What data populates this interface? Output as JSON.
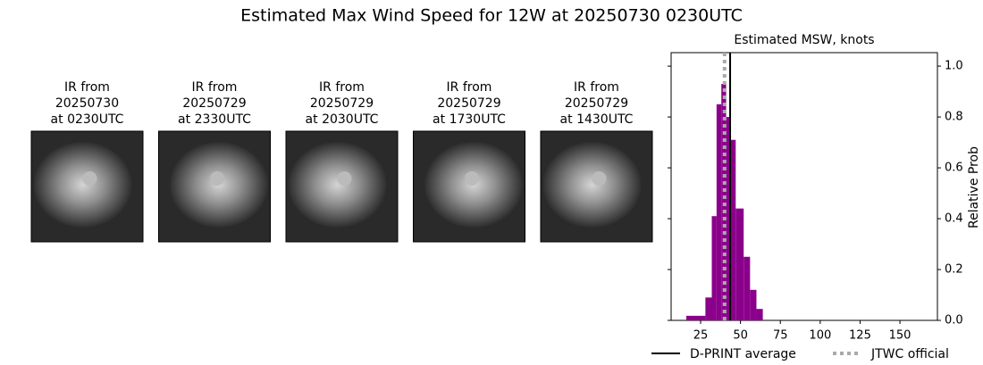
{
  "chart_data": {
    "type": "histogram",
    "title": "Estimated Max Wind Speed for 12W at 20250730 0230UTC",
    "panels": [
      {
        "label": [
          "IR from",
          "20250730",
          "at 0230UTC"
        ]
      },
      {
        "label": [
          "IR from",
          "20250729",
          "at 2330UTC"
        ]
      },
      {
        "label": [
          "IR from",
          "20250729",
          "at 2030UTC"
        ]
      },
      {
        "label": [
          "IR from",
          "20250729",
          "at 1730UTC"
        ]
      },
      {
        "label": [
          "IR from",
          "20250729",
          "at 1430UTC"
        ]
      }
    ],
    "histogram_title": "Estimated MSW, knots",
    "y2label": "Relative Prob",
    "bins": [
      16,
      28,
      32,
      35,
      38,
      41,
      44,
      47,
      52,
      56,
      60,
      64
    ],
    "counts": [
      0.018,
      0.09,
      0.41,
      0.85,
      0.93,
      0.8,
      0.71,
      0.44,
      0.25,
      0.12,
      0.045
    ],
    "color": "#8b008b",
    "xlim": [
      6.5,
      173.5
    ],
    "xticks": [
      25,
      50,
      75,
      100,
      125,
      150
    ],
    "ylim": [
      0,
      1.053
    ],
    "yticks": [
      {
        "value": 0,
        "label": "0.0"
      },
      0.2,
      0.4,
      0.6,
      0.8,
      {
        "value": 1,
        "label": "1.0"
      }
    ],
    "reference_lines": [
      {
        "name": "D-PRINT average",
        "value": 43.5,
        "color": "#000000",
        "style": "solid"
      },
      {
        "name": "JTWC official",
        "value": 40,
        "color": "#aaaaaa",
        "style": "dotted"
      }
    ]
  }
}
